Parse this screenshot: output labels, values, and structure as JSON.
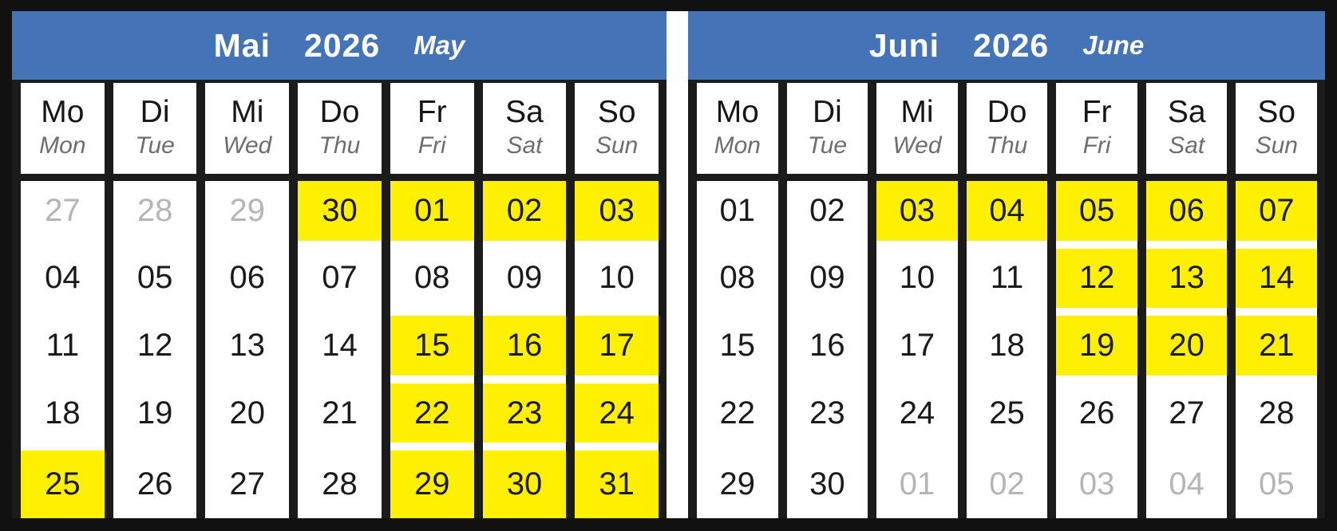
{
  "colors": {
    "header_bg": "#4473b8",
    "highlight": "#ffef00",
    "muted_text": "#b5b5b5"
  },
  "months": [
    {
      "title_de": "Mai",
      "year": "2026",
      "title_en": "May",
      "weekdays": [
        {
          "de": "Mo",
          "en": "Mon"
        },
        {
          "de": "Di",
          "en": "Tue"
        },
        {
          "de": "Mi",
          "en": "Wed"
        },
        {
          "de": "Do",
          "en": "Thu"
        },
        {
          "de": "Fr",
          "en": "Fri"
        },
        {
          "de": "Sa",
          "en": "Sat"
        },
        {
          "de": "So",
          "en": "Sun"
        }
      ],
      "weeks": [
        [
          {
            "label": "27",
            "muted": true
          },
          {
            "label": "28",
            "muted": true
          },
          {
            "label": "29",
            "muted": true
          },
          {
            "label": "30",
            "highlight": true
          },
          {
            "label": "01",
            "highlight": true
          },
          {
            "label": "02",
            "highlight": true
          },
          {
            "label": "03",
            "highlight": true
          }
        ],
        [
          {
            "label": "04"
          },
          {
            "label": "05"
          },
          {
            "label": "06"
          },
          {
            "label": "07"
          },
          {
            "label": "08"
          },
          {
            "label": "09"
          },
          {
            "label": "10"
          }
        ],
        [
          {
            "label": "11"
          },
          {
            "label": "12"
          },
          {
            "label": "13"
          },
          {
            "label": "14"
          },
          {
            "label": "15",
            "highlight": true
          },
          {
            "label": "16",
            "highlight": true
          },
          {
            "label": "17",
            "highlight": true
          }
        ],
        [
          {
            "label": "18"
          },
          {
            "label": "19"
          },
          {
            "label": "20"
          },
          {
            "label": "21"
          },
          {
            "label": "22",
            "highlight": true
          },
          {
            "label": "23",
            "highlight": true
          },
          {
            "label": "24",
            "highlight": true
          }
        ],
        [
          {
            "label": "25",
            "highlight": true
          },
          {
            "label": "26"
          },
          {
            "label": "27"
          },
          {
            "label": "28"
          },
          {
            "label": "29",
            "highlight": true
          },
          {
            "label": "30",
            "highlight": true
          },
          {
            "label": "31",
            "highlight": true
          }
        ]
      ]
    },
    {
      "title_de": "Juni",
      "year": "2026",
      "title_en": "June",
      "weekdays": [
        {
          "de": "Mo",
          "en": "Mon"
        },
        {
          "de": "Di",
          "en": "Tue"
        },
        {
          "de": "Mi",
          "en": "Wed"
        },
        {
          "de": "Do",
          "en": "Thu"
        },
        {
          "de": "Fr",
          "en": "Fri"
        },
        {
          "de": "Sa",
          "en": "Sat"
        },
        {
          "de": "So",
          "en": "Sun"
        }
      ],
      "weeks": [
        [
          {
            "label": "01"
          },
          {
            "label": "02"
          },
          {
            "label": "03",
            "highlight": true
          },
          {
            "label": "04",
            "highlight": true
          },
          {
            "label": "05",
            "highlight": true
          },
          {
            "label": "06",
            "highlight": true
          },
          {
            "label": "07",
            "highlight": true
          }
        ],
        [
          {
            "label": "08"
          },
          {
            "label": "09"
          },
          {
            "label": "10"
          },
          {
            "label": "11"
          },
          {
            "label": "12",
            "highlight": true
          },
          {
            "label": "13",
            "highlight": true
          },
          {
            "label": "14",
            "highlight": true
          }
        ],
        [
          {
            "label": "15"
          },
          {
            "label": "16"
          },
          {
            "label": "17"
          },
          {
            "label": "18"
          },
          {
            "label": "19",
            "highlight": true
          },
          {
            "label": "20",
            "highlight": true
          },
          {
            "label": "21",
            "highlight": true
          }
        ],
        [
          {
            "label": "22"
          },
          {
            "label": "23"
          },
          {
            "label": "24"
          },
          {
            "label": "25"
          },
          {
            "label": "26"
          },
          {
            "label": "27"
          },
          {
            "label": "28"
          }
        ],
        [
          {
            "label": "29"
          },
          {
            "label": "30"
          },
          {
            "label": "01",
            "muted": true
          },
          {
            "label": "02",
            "muted": true
          },
          {
            "label": "03",
            "muted": true
          },
          {
            "label": "04",
            "muted": true
          },
          {
            "label": "05",
            "muted": true
          }
        ]
      ]
    }
  ]
}
